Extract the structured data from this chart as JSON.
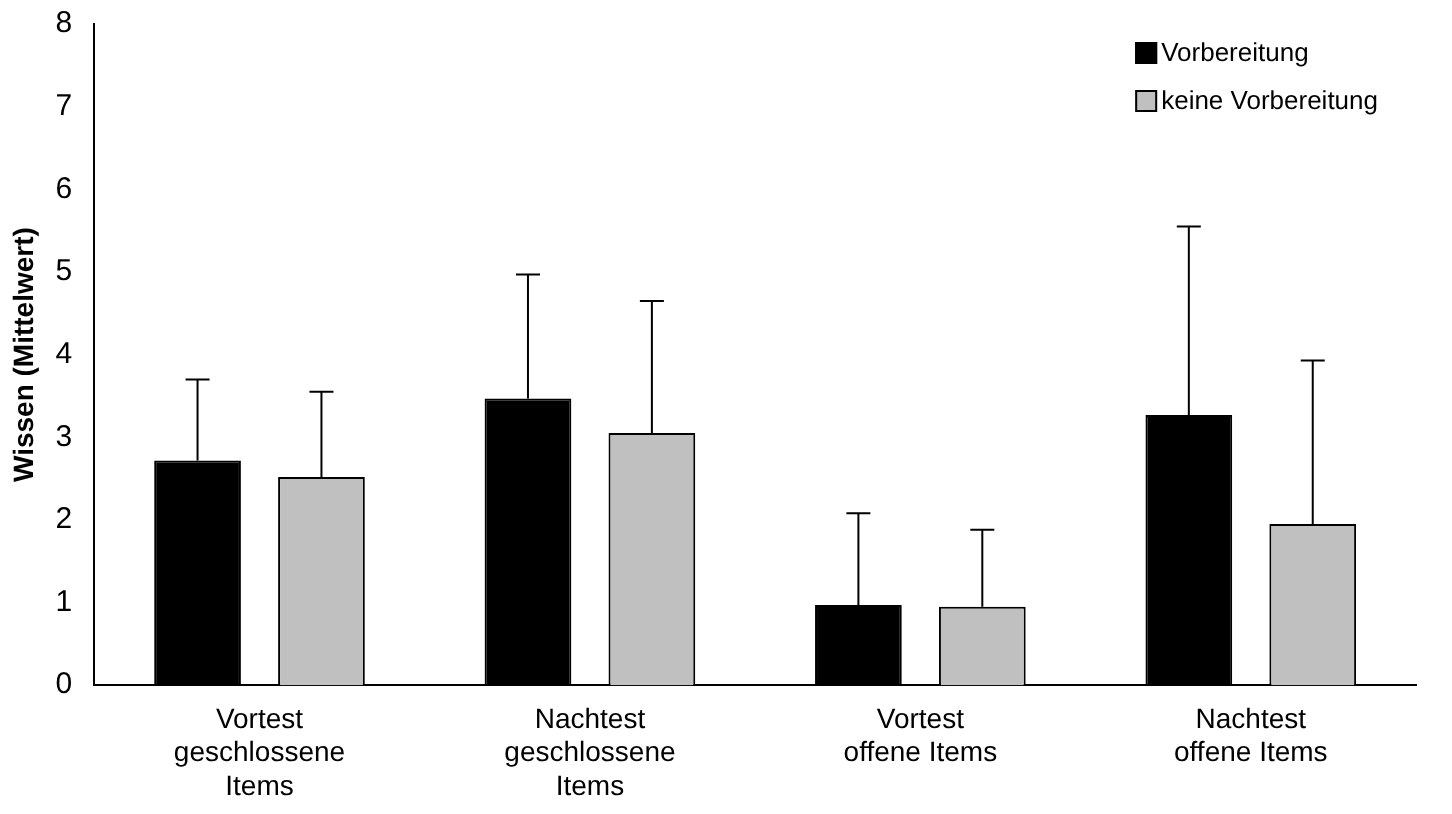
{
  "chart_data": {
    "type": "bar",
    "ylabel": "Wissen (Mittelwert)",
    "categories": [
      "Vortest\ngeschlossene\nItems",
      "Nachtest\ngeschlossene\nItems",
      "Vortest\noffene Items",
      "Nachtest\noffene Items"
    ],
    "series": [
      {
        "name": "Vorbereitung",
        "color": "#000000",
        "values": [
          2.72,
          3.47,
          0.97,
          3.27
        ],
        "errors": [
          [
            2.72,
            3.7
          ],
          [
            3.47,
            4.97
          ],
          [
            0.97,
            2.08
          ],
          [
            3.27,
            5.55
          ]
        ]
      },
      {
        "name": "keine Vorbereitung",
        "color": "#c0c0c0",
        "values": [
          2.52,
          3.05,
          0.95,
          1.95
        ],
        "errors": [
          [
            2.52,
            3.55
          ],
          [
            3.05,
            4.65
          ],
          [
            0.95,
            1.88
          ],
          [
            1.95,
            3.93
          ]
        ]
      }
    ],
    "ylim": [
      0,
      8
    ],
    "yticks": [
      0,
      1,
      2,
      3,
      4,
      5,
      6,
      7,
      8
    ],
    "grid": false,
    "legend": "top right"
  }
}
